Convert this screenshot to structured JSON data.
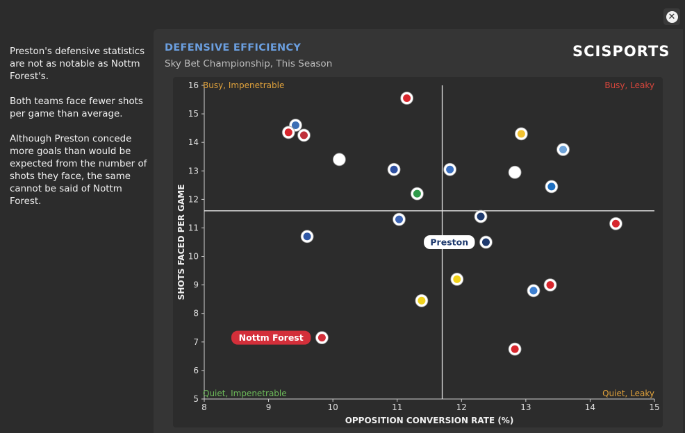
{
  "sidebar": {
    "paragraphs": [
      "Preston's defensive statistics are not as notable as Nottm Forest's.",
      "Both teams face fewer shots per game than average.",
      "Although Preston concede more goals than would be expected from the number of shots they face, the same cannot be said of Nottm Forest."
    ]
  },
  "header": {
    "title": "DEFENSIVE EFFICIENCY",
    "subtitle": "Sky Bet Championship, This Season",
    "logo": "SCISPORTS"
  },
  "close_icon": "close-icon",
  "chart_data": {
    "type": "scatter",
    "xlabel": "OPPOSITION CONVERSION RATE (%)",
    "ylabel": "SHOTS FACED PER GAME",
    "xlim": [
      8,
      15
    ],
    "ylim": [
      5,
      16
    ],
    "xticks": [
      "8",
      "9",
      "10",
      "11",
      "12",
      "13",
      "14",
      "15"
    ],
    "yticks": [
      "5",
      "6",
      "7",
      "8",
      "9",
      "10",
      "11",
      "12",
      "13",
      "14",
      "15",
      "16"
    ],
    "average": {
      "x": 11.7,
      "y": 11.6
    },
    "quadrants": [
      {
        "label": "Busy, Impenetrable",
        "pos": "top-left",
        "color": "#e0a23c"
      },
      {
        "label": "Busy, Leaky",
        "pos": "top-right",
        "color": "#d9463c"
      },
      {
        "label": "Quiet, Impenetrable",
        "pos": "bottom-left",
        "color": "#6dbb5a"
      },
      {
        "label": "Quiet, Leaky",
        "pos": "bottom-right",
        "color": "#e0a23c"
      }
    ],
    "highlights": [
      {
        "label": "Preston",
        "x": 12.38,
        "y": 10.5,
        "color": "#ffffff",
        "text_color": "#1e3a6e",
        "side": "left"
      },
      {
        "label": "Nottm Forest",
        "x": 9.83,
        "y": 7.15,
        "color": "#d32f3a",
        "text_color": "#ffffff",
        "side": "left"
      }
    ],
    "points": [
      {
        "x": 11.15,
        "y": 15.55,
        "color": "#d7262d"
      },
      {
        "x": 9.42,
        "y": 14.6,
        "color": "#3d6fb5"
      },
      {
        "x": 9.31,
        "y": 14.35,
        "color": "#d7262d"
      },
      {
        "x": 9.55,
        "y": 14.25,
        "color": "#c0303a"
      },
      {
        "x": 10.1,
        "y": 13.4,
        "color": "#ffffff"
      },
      {
        "x": 10.95,
        "y": 13.05,
        "color": "#2d4fa0"
      },
      {
        "x": 11.82,
        "y": 13.05,
        "color": "#3a6fc0"
      },
      {
        "x": 11.31,
        "y": 12.2,
        "color": "#2f9a4a"
      },
      {
        "x": 12.93,
        "y": 14.3,
        "color": "#f2c230"
      },
      {
        "x": 13.58,
        "y": 13.75,
        "color": "#6fa3d8"
      },
      {
        "x": 12.83,
        "y": 12.95,
        "color": "#ffffff"
      },
      {
        "x": 13.4,
        "y": 12.45,
        "color": "#1e6fc0"
      },
      {
        "x": 12.3,
        "y": 11.4,
        "color": "#1e3a6e"
      },
      {
        "x": 11.03,
        "y": 11.3,
        "color": "#3c64b4"
      },
      {
        "x": 14.4,
        "y": 11.15,
        "color": "#d7262d"
      },
      {
        "x": 9.6,
        "y": 10.7,
        "color": "#2f57a5"
      },
      {
        "x": 11.93,
        "y": 9.2,
        "color": "#f2d21a"
      },
      {
        "x": 11.38,
        "y": 8.45,
        "color": "#f0d21e"
      },
      {
        "x": 13.12,
        "y": 8.8,
        "color": "#3d7fd0"
      },
      {
        "x": 13.38,
        "y": 9.0,
        "color": "#d7262d"
      },
      {
        "x": 12.83,
        "y": 6.75,
        "color": "#d7262d"
      },
      {
        "x": 12.38,
        "y": 10.5,
        "color": "#1e3a6e"
      },
      {
        "x": 9.83,
        "y": 7.15,
        "color": "#d32f3a"
      }
    ]
  }
}
